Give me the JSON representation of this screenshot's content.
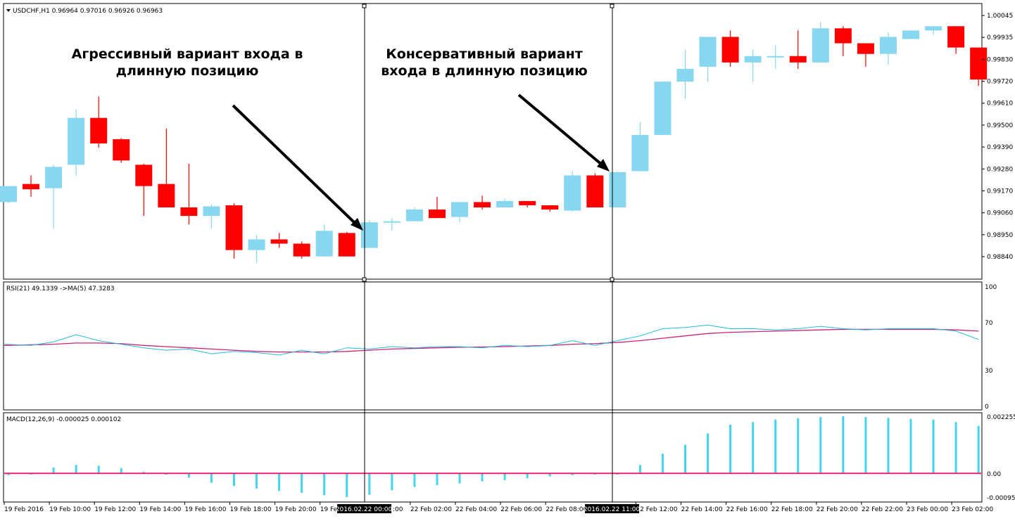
{
  "colors": {
    "bull": "#87D7F0",
    "bear": "#FF0000",
    "ma": "#CC2277",
    "rsi": "#22BBDD",
    "macd_bar": "#44D4EE",
    "macd_signal": "#E8246E",
    "frame": "#000000"
  },
  "price_panel": {
    "header": "USDCHF,H1  0.96964 0.97016 0.96926 0.96963",
    "yticks": [
      "1.00045",
      "0.99935",
      "0.99830",
      "0.99720",
      "0.99610",
      "0.99500",
      "0.99390",
      "0.99280",
      "0.99170",
      "0.99060",
      "0.98950",
      "0.98840"
    ],
    "annotations": {
      "aggressive_line1": "Агрессивный вариант входа в",
      "aggressive_line2": "длинную позицию",
      "conservative_line1": "Консервативный вариант",
      "conservative_line2": "входа в длинную позицию"
    }
  },
  "rsi_panel": {
    "header": "RSI(21) 49.1339  ->MA(5) 47.3283",
    "yticks": [
      "100",
      "70",
      "30",
      "0"
    ]
  },
  "macd_panel": {
    "header": "MACD(12,26,9) -0.000025 0.000102",
    "yticks": [
      "0.002255",
      "0.00",
      "-0.00095"
    ]
  },
  "x_axis": {
    "ticks": [
      "19 Feb 2016",
      "19 Feb 10:00",
      "19 Feb 12:00",
      "19 Feb 14:00",
      "19 Feb 16:00",
      "19 Feb 18:00",
      "19 Feb 20:00",
      "19 Feb",
      "",
      "22 Feb 02:00",
      "22 Feb 04:00",
      "22 Feb 06:00",
      "22 Feb 08:00",
      "",
      "22 Feb 12:00",
      "22 Feb 14:00",
      "22 Feb 16:00",
      "22 Feb 18:00",
      "22 Feb 20:00",
      "22 Feb 22:00",
      "23 Feb 00:00",
      "23 Feb 02:00"
    ],
    "cross_label_1": "2016.02.22 00:00",
    "cross_label_2": "2016.02.22 11:00",
    "cross_label_1_tail": ":00"
  },
  "chart_data": {
    "type": "candlestick",
    "title": "USDCHF,H1",
    "ylim": [
      0.9882,
      1.0008
    ],
    "candles": [
      {
        "o": 0.99165,
        "h": 0.9923,
        "l": 0.9916,
        "c": 0.9924
      },
      {
        "o": 0.9925,
        "h": 0.9929,
        "l": 0.9919,
        "c": 0.99225
      },
      {
        "o": 0.9923,
        "h": 0.9934,
        "l": 0.9904,
        "c": 0.9933
      },
      {
        "o": 0.9934,
        "h": 0.996,
        "l": 0.9929,
        "c": 0.9956
      },
      {
        "o": 0.9956,
        "h": 0.9966,
        "l": 0.9942,
        "c": 0.9944
      },
      {
        "o": 0.9946,
        "h": 0.99465,
        "l": 0.9935,
        "c": 0.9936
      },
      {
        "o": 0.9934,
        "h": 0.99345,
        "l": 0.991,
        "c": 0.9924
      },
      {
        "o": 0.9925,
        "h": 0.9951,
        "l": 0.9915,
        "c": 0.9914
      },
      {
        "o": 0.9914,
        "h": 0.99345,
        "l": 0.9906,
        "c": 0.991
      },
      {
        "o": 0.991,
        "h": 0.99155,
        "l": 0.9904,
        "c": 0.99145
      },
      {
        "o": 0.9915,
        "h": 0.9916,
        "l": 0.989,
        "c": 0.9894
      },
      {
        "o": 0.9894,
        "h": 0.9901,
        "l": 0.9888,
        "c": 0.9899
      },
      {
        "o": 0.9899,
        "h": 0.9902,
        "l": 0.9895,
        "c": 0.9897
      },
      {
        "o": 0.9897,
        "h": 0.9898,
        "l": 0.989,
        "c": 0.9891
      },
      {
        "o": 0.9891,
        "h": 0.9906,
        "l": 0.9891,
        "c": 0.9903
      },
      {
        "o": 0.9902,
        "h": 0.99025,
        "l": 0.9891,
        "c": 0.9891
      },
      {
        "o": 0.9895,
        "h": 0.9908,
        "l": 0.9895,
        "c": 0.9907
      },
      {
        "o": 0.9907,
        "h": 0.9909,
        "l": 0.9903,
        "c": 0.99075
      },
      {
        "o": 0.99075,
        "h": 0.9914,
        "l": 0.99075,
        "c": 0.9913
      },
      {
        "o": 0.9913,
        "h": 0.9919,
        "l": 0.9909,
        "c": 0.9909
      },
      {
        "o": 0.99095,
        "h": 0.99165,
        "l": 0.9907,
        "c": 0.99165
      },
      {
        "o": 0.99165,
        "h": 0.99195,
        "l": 0.9913,
        "c": 0.9914
      },
      {
        "o": 0.9914,
        "h": 0.9918,
        "l": 0.9914,
        "c": 0.9917
      },
      {
        "o": 0.9917,
        "h": 0.9917,
        "l": 0.9914,
        "c": 0.9915
      },
      {
        "o": 0.9915,
        "h": 0.9915,
        "l": 0.9912,
        "c": 0.9913
      },
      {
        "o": 0.99125,
        "h": 0.9931,
        "l": 0.9912,
        "c": 0.9929
      },
      {
        "o": 0.9929,
        "h": 0.993,
        "l": 0.9914,
        "c": 0.9914
      },
      {
        "o": 0.9914,
        "h": 0.9931,
        "l": 0.9914,
        "c": 0.99305
      },
      {
        "o": 0.9931,
        "h": 0.9954,
        "l": 0.9931,
        "c": 0.9948
      },
      {
        "o": 0.9948,
        "h": 0.9973,
        "l": 0.9948,
        "c": 0.9973
      },
      {
        "o": 0.9973,
        "h": 0.9988,
        "l": 0.9965,
        "c": 0.9979
      },
      {
        "o": 0.998,
        "h": 0.9994,
        "l": 0.9973,
        "c": 0.9994
      },
      {
        "o": 0.9994,
        "h": 0.9997,
        "l": 0.998,
        "c": 0.9982
      },
      {
        "o": 0.9982,
        "h": 0.9988,
        "l": 0.9973,
        "c": 0.9985
      },
      {
        "o": 0.9985,
        "h": 0.999,
        "l": 0.9979,
        "c": 0.9985
      },
      {
        "o": 0.9985,
        "h": 0.9997,
        "l": 0.9979,
        "c": 0.9982
      },
      {
        "o": 0.9982,
        "h": 1.0001,
        "l": 0.9982,
        "c": 0.9998
      },
      {
        "o": 0.9998,
        "h": 0.9999,
        "l": 0.9985,
        "c": 0.9991
      },
      {
        "o": 0.9991,
        "h": 0.9991,
        "l": 0.998,
        "c": 0.9986
      },
      {
        "o": 0.9986,
        "h": 0.9996,
        "l": 0.9981,
        "c": 0.9994
      },
      {
        "o": 0.9993,
        "h": 0.9997,
        "l": 0.9993,
        "c": 0.9997
      },
      {
        "o": 0.9997,
        "h": 0.9999,
        "l": 0.9995,
        "c": 0.9999
      },
      {
        "o": 0.9999,
        "h": 0.9999,
        "l": 0.9986,
        "c": 0.9989
      },
      {
        "o": 0.9989,
        "h": 0.9989,
        "l": 0.9971,
        "c": 0.9974
      }
    ],
    "rsi": [
      52,
      51,
      54,
      60,
      55,
      52,
      49,
      47,
      48,
      44,
      46,
      45,
      43,
      47,
      44,
      49,
      48,
      50,
      49,
      50,
      50,
      49,
      51,
      50,
      51,
      55,
      51,
      55,
      59,
      65,
      66,
      68,
      65,
      65,
      64,
      65,
      67,
      65,
      64,
      65,
      65,
      65,
      63,
      56
    ],
    "rsi_ma": [
      51,
      51.5,
      52,
      53,
      53,
      52.5,
      51,
      50,
      49,
      48,
      47,
      46,
      45.5,
      45.5,
      45.5,
      46,
      47,
      48,
      48.5,
      49,
      49.5,
      49.7,
      50,
      50.5,
      51,
      52,
      52.5,
      53.5,
      55,
      57,
      59,
      61,
      62,
      62.5,
      63,
      63.5,
      64,
      64.5,
      64.5,
      64.5,
      64.5,
      64.5,
      64,
      63
    ],
    "macd": [
      -5e-05,
      -2e-05,
      0.00025,
      0.00035,
      0.00032,
      0.00022,
      8e-05,
      -3e-05,
      -0.00015,
      -0.00035,
      -0.00048,
      -0.00058,
      -0.00068,
      -0.00075,
      -0.00085,
      -0.00092,
      -0.00083,
      -0.00065,
      -0.00052,
      -0.00045,
      -0.00038,
      -0.0003,
      -0.00025,
      -0.00018,
      -0.0001,
      -5e-05,
      0.0,
      0.0,
      0.00035,
      0.0008,
      0.00115,
      0.0016,
      0.00195,
      0.00205,
      0.00215,
      0.0022,
      0.00225,
      0.00228,
      0.00225,
      0.00222,
      0.00218,
      0.00215,
      0.00205,
      0.0019
    ],
    "macd_signal_value": 2e-05,
    "macd_ylim": [
      -0.00095,
      0.002255
    ],
    "rsi_ylim": [
      0,
      100
    ]
  }
}
